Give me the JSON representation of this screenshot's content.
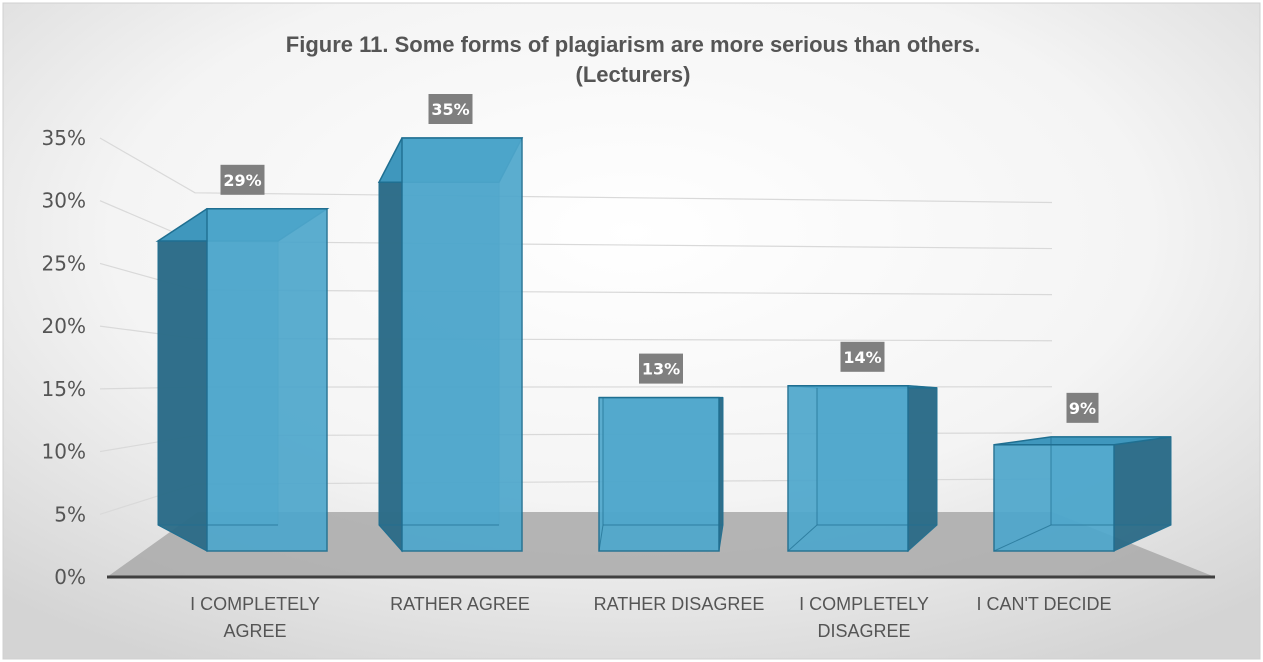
{
  "chart_data": {
    "type": "bar",
    "title_lines": [
      "Figure 11. Some forms of plagiarism are more serious than others.",
      "(Lecturers)"
    ],
    "categories": [
      [
        "I COMPLETELY",
        "AGREE"
      ],
      [
        "RATHER AGREE"
      ],
      [
        "RATHER DISAGREE"
      ],
      [
        "I COMPLETELY",
        "DISAGREE"
      ],
      [
        "I CAN'T DECIDE"
      ]
    ],
    "values": [
      29,
      35,
      13,
      14,
      9
    ],
    "data_labels": [
      "29%",
      "35%",
      "13%",
      "14%",
      "9%"
    ],
    "y_ticks": [
      0,
      5,
      10,
      15,
      20,
      25,
      30,
      35
    ],
    "y_tick_labels": [
      "0%",
      "5%",
      "10%",
      "15%",
      "20%",
      "25%",
      "30%",
      "35%"
    ],
    "ylim": [
      0,
      35
    ],
    "grid": true,
    "style": "3d-column",
    "colors": {
      "bar_front": "#4ea7cc",
      "bar_side": "#2b6b87",
      "bar_top": "#3f97bd",
      "bar_edge": "#1f6f91",
      "label_bg": "#7f7f7f",
      "floor": "#a9a9a9",
      "gridline": "#d9d9d9",
      "axis": "#404040"
    }
  }
}
